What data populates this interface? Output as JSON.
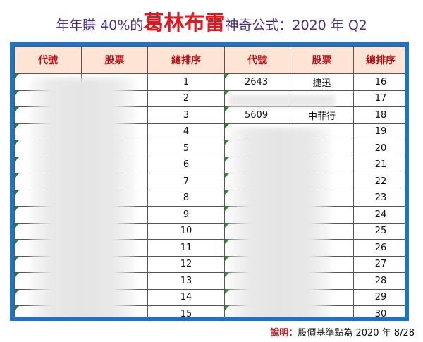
{
  "title": {
    "prefix": "年年賺 40%的",
    "highlight": "葛林布雷",
    "suffix": "神奇公式：2020 年 Q2"
  },
  "table": {
    "headers": [
      "代號",
      "股票",
      "總排序",
      "代號",
      "股票",
      "總排序"
    ],
    "rows": [
      {
        "rank_left": "1",
        "code_right": "2643",
        "stock_right": "捷迅",
        "rank_right": "16"
      },
      {
        "rank_left": "2",
        "code_right": "",
        "stock_right": "",
        "rank_right": "17"
      },
      {
        "rank_left": "3",
        "code_right": "5609",
        "stock_right": "中菲行",
        "rank_right": "18"
      },
      {
        "rank_left": "4",
        "code_right": "",
        "stock_right": "",
        "rank_right": "19"
      },
      {
        "rank_left": "5",
        "code_right": "",
        "stock_right": "",
        "rank_right": "20"
      },
      {
        "rank_left": "6",
        "code_right": "",
        "stock_right": "",
        "rank_right": "21"
      },
      {
        "rank_left": "7",
        "code_right": "",
        "stock_right": "",
        "rank_right": "22"
      },
      {
        "rank_left": "8",
        "code_right": "",
        "stock_right": "",
        "rank_right": "23"
      },
      {
        "rank_left": "9",
        "code_right": "",
        "stock_right": "",
        "rank_right": "24"
      },
      {
        "rank_left": "10",
        "code_right": "",
        "stock_right": "",
        "rank_right": "25"
      },
      {
        "rank_left": "11",
        "code_right": "",
        "stock_right": "",
        "rank_right": "26"
      },
      {
        "rank_left": "12",
        "code_right": "",
        "stock_right": "",
        "rank_right": "27"
      },
      {
        "rank_left": "13",
        "code_right": "",
        "stock_right": "",
        "rank_right": "28"
      },
      {
        "rank_left": "14",
        "code_right": "",
        "stock_right": "",
        "rank_right": "29"
      },
      {
        "rank_left": "15",
        "code_right": "",
        "stock_right": "",
        "rank_right": "30"
      }
    ]
  },
  "note": {
    "label": "說明：",
    "text": "股價基準點為 2020 年 8/28"
  },
  "colors": {
    "title_purple": "#4b2d84",
    "title_red": "#e8141b",
    "frame_blue": "#1f73c6",
    "header_bg": "#fde4d4",
    "header_text": "#b4121a"
  }
}
